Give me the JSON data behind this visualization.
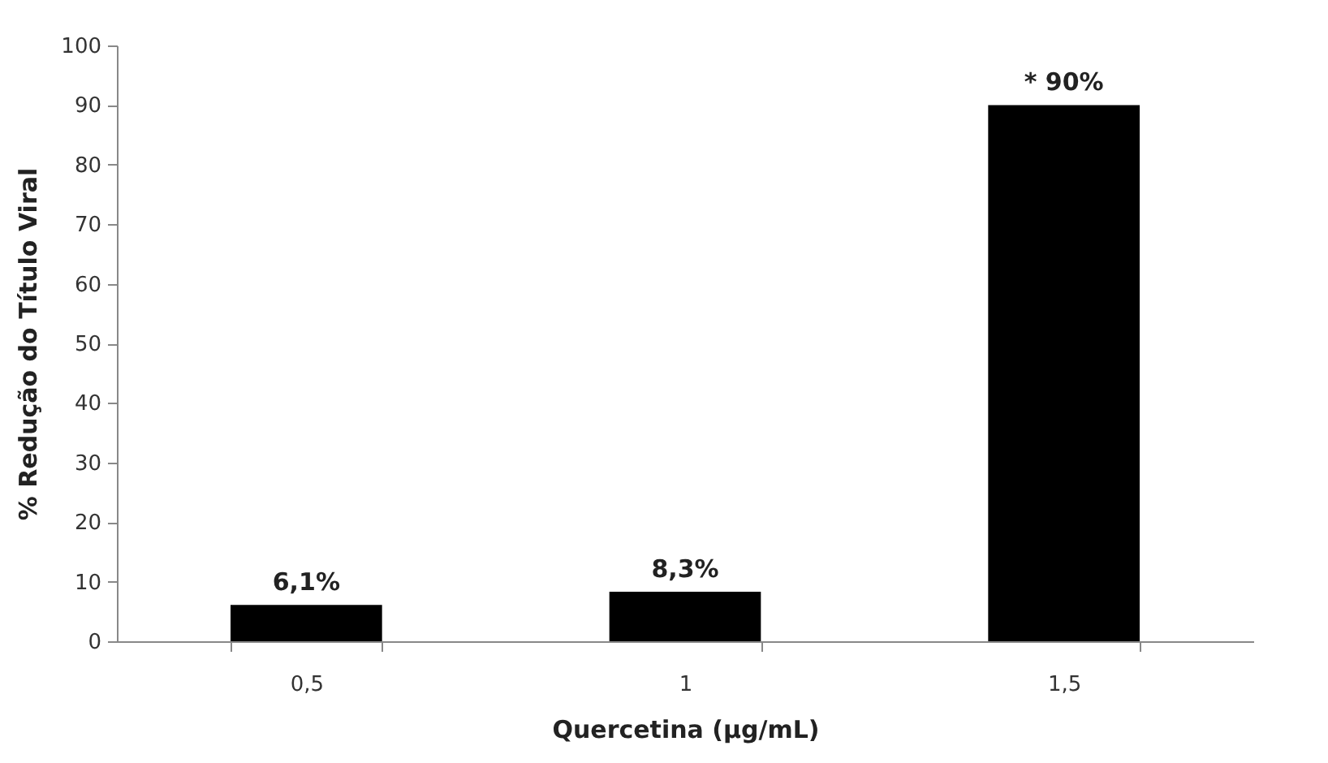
{
  "chart_data": {
    "type": "bar",
    "xlabel": "Quercetina (µg/mL)",
    "ylabel": "% Redução do Título Viral",
    "categories": [
      "0,5",
      "1",
      "1,5"
    ],
    "values": [
      6.1,
      8.3,
      90
    ],
    "color": "#000000",
    "value_labels": [
      "6,1%",
      "8,3%",
      "* 90%"
    ],
    "ylim": [
      0,
      100
    ],
    "yticks": [
      0,
      10,
      20,
      30,
      40,
      50,
      60,
      70,
      80,
      90,
      100
    ],
    "grid": false
  }
}
